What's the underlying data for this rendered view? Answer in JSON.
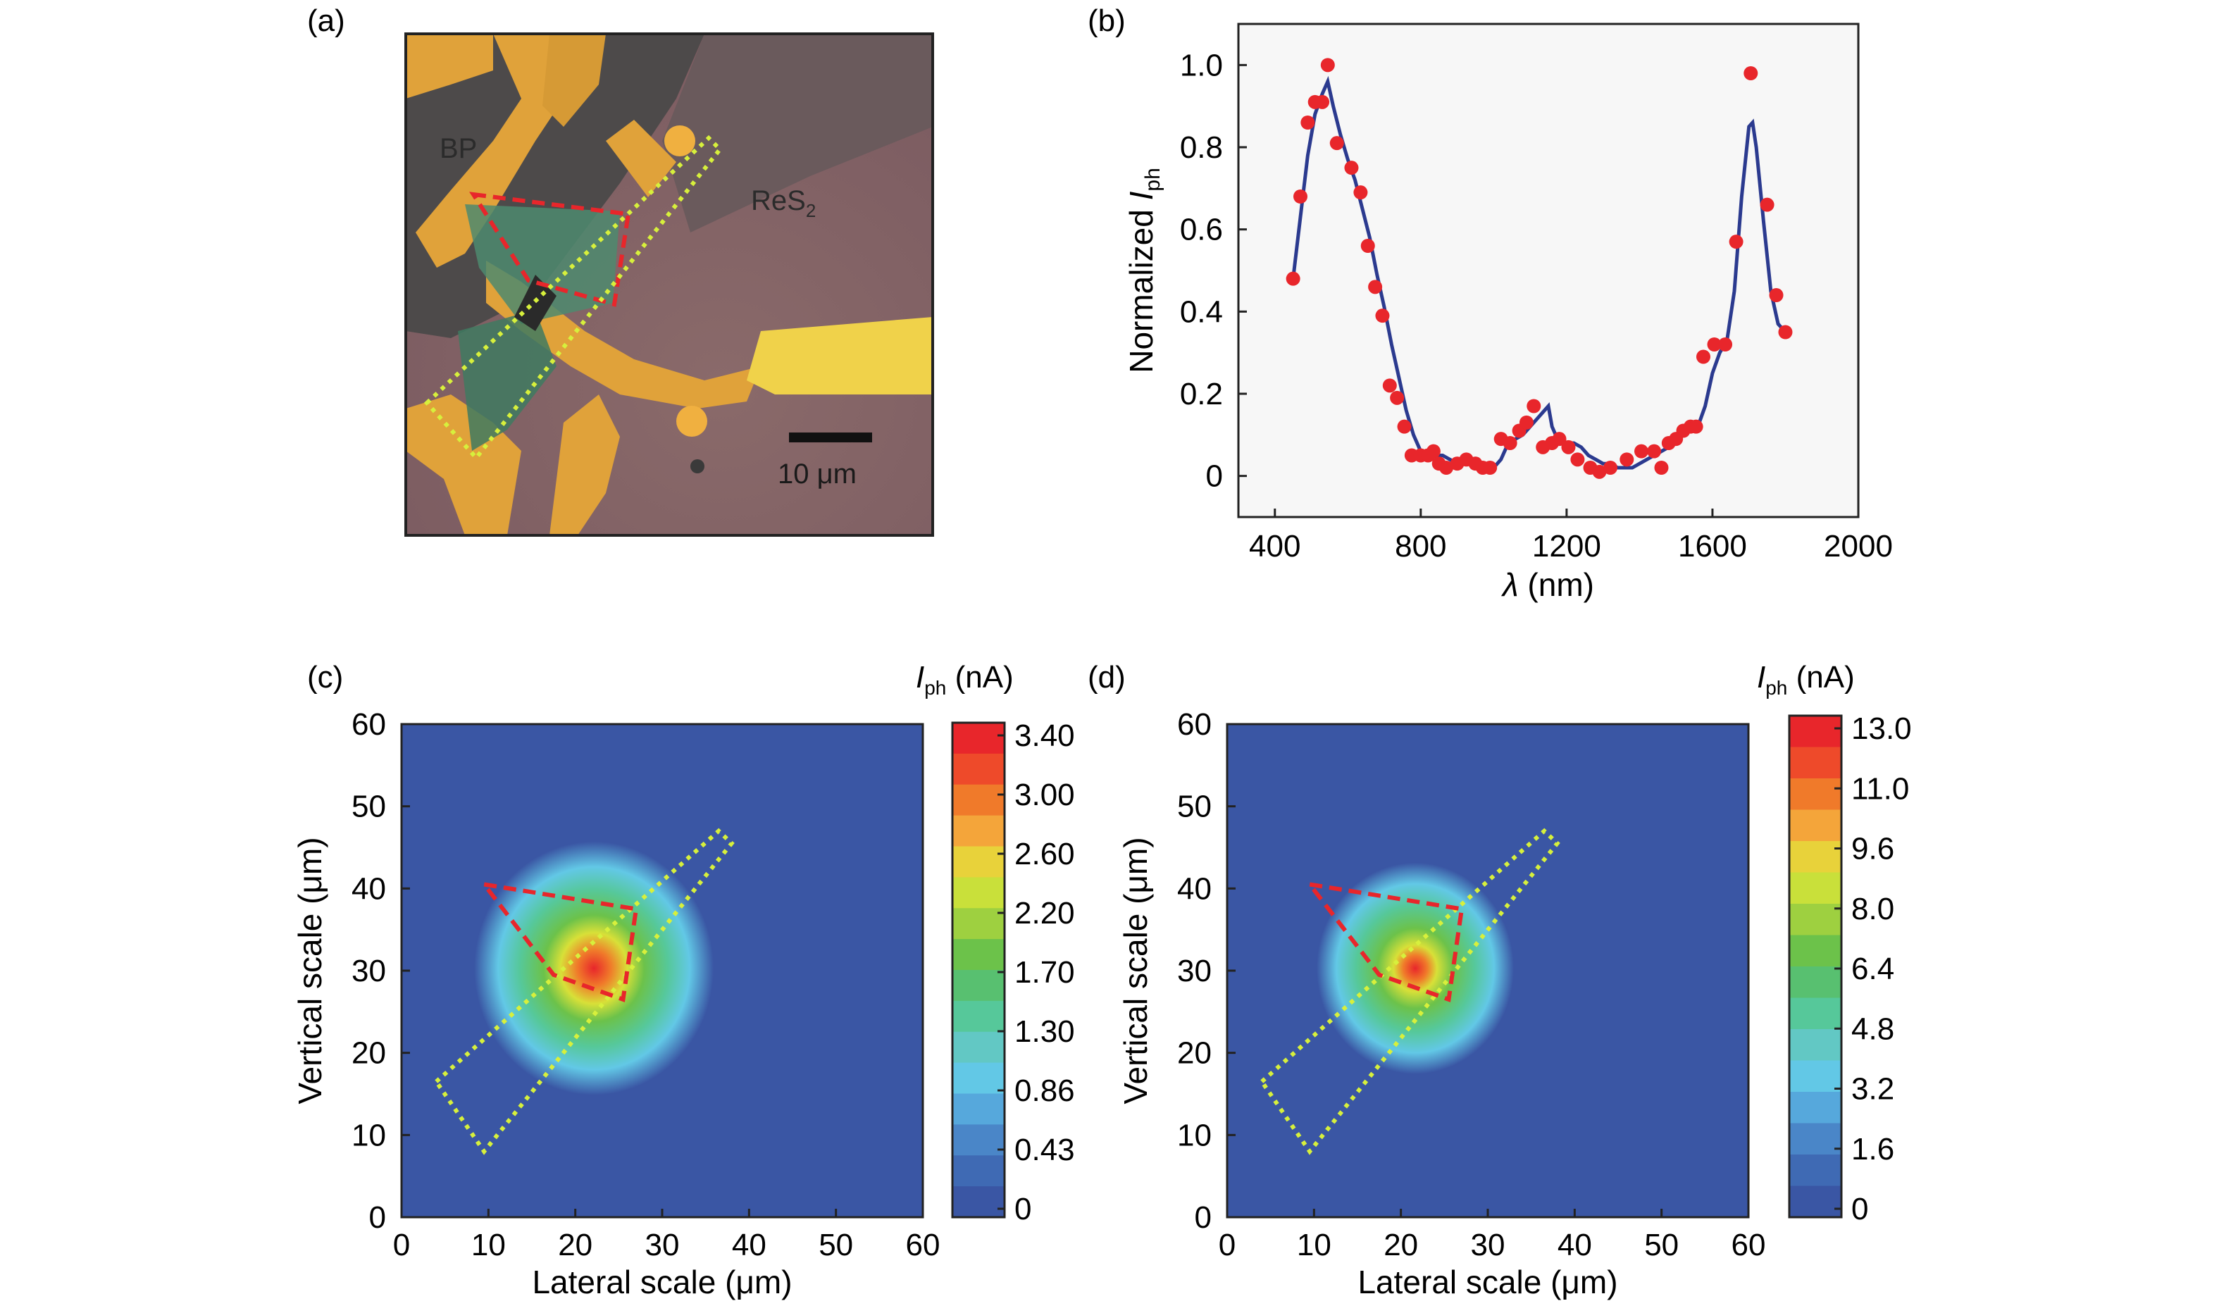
{
  "panels": {
    "a": {
      "label": "(a)",
      "image_labels": {
        "bp": "BP",
        "res2_main": "ReS",
        "res2_sub": "2",
        "scalebar": "10 μm"
      }
    },
    "b": {
      "label": "(b)"
    },
    "c": {
      "label": "(c)",
      "colorbar_title_main": "I",
      "colorbar_title_sub": "ph",
      "colorbar_title_unit": " (nA)",
      "colorbar_ticks": [
        "3.40",
        "3.00",
        "2.60",
        "2.20",
        "1.70",
        "1.30",
        "0.86",
        "0.43",
        "0"
      ]
    },
    "d": {
      "label": "(d)",
      "colorbar_title_main": "I",
      "colorbar_title_sub": "ph",
      "colorbar_title_unit": " (nA)",
      "colorbar_ticks": [
        "13.0",
        "11.0",
        "9.6",
        "8.0",
        "6.4",
        "4.8",
        "3.2",
        "1.6",
        "0"
      ]
    }
  },
  "colors": {
    "plot_bg": "#f7f7f7",
    "line": "#2b3a8f",
    "points": "#e8262b",
    "map_bg": "#3a56a4",
    "red_outline": "#e8262b",
    "yellow_outline": "#d7f03c"
  },
  "chart_data": [
    {
      "type": "line",
      "panel": "b",
      "xlabel_main": "λ",
      "xlabel_unit": " (nm)",
      "ylabel_main": "Normalized ",
      "ylabel_var": "I",
      "ylabel_sub": "ph",
      "xlim": [
        300,
        2000
      ],
      "ylim": [
        -0.1,
        1.1
      ],
      "xticks": [
        400,
        800,
        1200,
        1600,
        2000
      ],
      "yticks": [
        0,
        0.2,
        0.4,
        0.6,
        0.8,
        1.0
      ],
      "ytick_labels": [
        "0",
        "0.2",
        "0.4",
        "0.6",
        "0.8",
        "1.0"
      ],
      "series": [
        {
          "kind": "scatter",
          "x": [
            450,
            470,
            490,
            510,
            530,
            545,
            570,
            610,
            635,
            655,
            675,
            695,
            715,
            735,
            755,
            775,
            800,
            820,
            835,
            850,
            870,
            900,
            925,
            950,
            970,
            990,
            1020,
            1045,
            1070,
            1090,
            1110,
            1135,
            1160,
            1180,
            1205,
            1230,
            1265,
            1290,
            1320,
            1365,
            1405,
            1440,
            1460,
            1480,
            1500,
            1520,
            1540,
            1555,
            1575,
            1605,
            1635,
            1665,
            1705,
            1750,
            1775,
            1800
          ],
          "y": [
            0.48,
            0.68,
            0.86,
            0.91,
            0.91,
            1.0,
            0.81,
            0.75,
            0.69,
            0.56,
            0.46,
            0.39,
            0.22,
            0.19,
            0.12,
            0.05,
            0.05,
            0.05,
            0.06,
            0.03,
            0.02,
            0.03,
            0.04,
            0.03,
            0.02,
            0.02,
            0.09,
            0.08,
            0.11,
            0.13,
            0.17,
            0.07,
            0.08,
            0.09,
            0.07,
            0.04,
            0.02,
            0.01,
            0.02,
            0.04,
            0.06,
            0.06,
            0.02,
            0.08,
            0.09,
            0.11,
            0.12,
            0.12,
            0.29,
            0.32,
            0.32,
            0.57,
            0.98,
            0.66,
            0.44,
            0.35
          ]
        },
        {
          "kind": "line",
          "x": [
            450,
            470,
            490,
            510,
            530,
            545,
            560,
            580,
            600,
            620,
            640,
            660,
            680,
            700,
            720,
            740,
            760,
            780,
            800,
            820,
            840,
            860,
            880,
            900,
            920,
            940,
            960,
            980,
            1000,
            1020,
            1040,
            1060,
            1080,
            1100,
            1120,
            1140,
            1150,
            1160,
            1180,
            1200,
            1220,
            1240,
            1260,
            1280,
            1300,
            1320,
            1340,
            1360,
            1380,
            1400,
            1420,
            1440,
            1460,
            1480,
            1500,
            1520,
            1540,
            1560,
            1580,
            1600,
            1620,
            1640,
            1660,
            1680,
            1700,
            1710,
            1720,
            1740,
            1760,
            1780,
            1800
          ],
          "y": [
            0.48,
            0.63,
            0.78,
            0.88,
            0.93,
            0.96,
            0.9,
            0.83,
            0.77,
            0.72,
            0.65,
            0.58,
            0.49,
            0.41,
            0.32,
            0.24,
            0.16,
            0.1,
            0.06,
            0.05,
            0.05,
            0.05,
            0.04,
            0.03,
            0.03,
            0.03,
            0.03,
            0.02,
            0.02,
            0.04,
            0.08,
            0.09,
            0.1,
            0.12,
            0.14,
            0.16,
            0.17,
            0.12,
            0.08,
            0.08,
            0.08,
            0.07,
            0.05,
            0.04,
            0.03,
            0.03,
            0.02,
            0.02,
            0.02,
            0.03,
            0.04,
            0.05,
            0.06,
            0.07,
            0.08,
            0.1,
            0.11,
            0.12,
            0.17,
            0.25,
            0.3,
            0.33,
            0.45,
            0.68,
            0.85,
            0.86,
            0.8,
            0.62,
            0.45,
            0.37,
            0.35
          ]
        }
      ]
    },
    {
      "type": "heatmap",
      "panel": "c",
      "xlabel": "Lateral scale (μm)",
      "ylabel": "Vertical scale (μm)",
      "xlim": [
        0,
        60
      ],
      "ylim": [
        0,
        60
      ],
      "xticks": [
        0,
        10,
        20,
        30,
        40,
        50,
        60
      ],
      "yticks": [
        0,
        10,
        20,
        30,
        40,
        50,
        60
      ],
      "colorbar_range": [
        0,
        3.4
      ],
      "hotspot": {
        "x": 21.5,
        "y": 32,
        "peak": 3.4
      },
      "red_polygon": [
        [
          9.5,
          40.5
        ],
        [
          27,
          37.5
        ],
        [
          25.5,
          26.5
        ],
        [
          17.5,
          29.5
        ]
      ],
      "yellow_polygon": [
        [
          4,
          16.5
        ],
        [
          36.5,
          47
        ],
        [
          38,
          45.5
        ],
        [
          9.5,
          8
        ]
      ]
    },
    {
      "type": "heatmap",
      "panel": "d",
      "xlabel": "Lateral scale (μm)",
      "ylabel": "Vertical scale (μm)",
      "xlim": [
        0,
        60
      ],
      "ylim": [
        0,
        60
      ],
      "xticks": [
        0,
        10,
        20,
        30,
        40,
        50,
        60
      ],
      "yticks": [
        0,
        10,
        20,
        30,
        40,
        50,
        60
      ],
      "colorbar_range": [
        0,
        13.0
      ],
      "hotspot": {
        "x": 21,
        "y": 32,
        "peak": 13.0
      },
      "red_polygon": [
        [
          9.5,
          40.5
        ],
        [
          27,
          37.5
        ],
        [
          25.5,
          26.5
        ],
        [
          17.5,
          29.5
        ]
      ],
      "yellow_polygon": [
        [
          4,
          16.5
        ],
        [
          36.5,
          47
        ],
        [
          38,
          45.5
        ],
        [
          9.5,
          8
        ]
      ]
    }
  ]
}
